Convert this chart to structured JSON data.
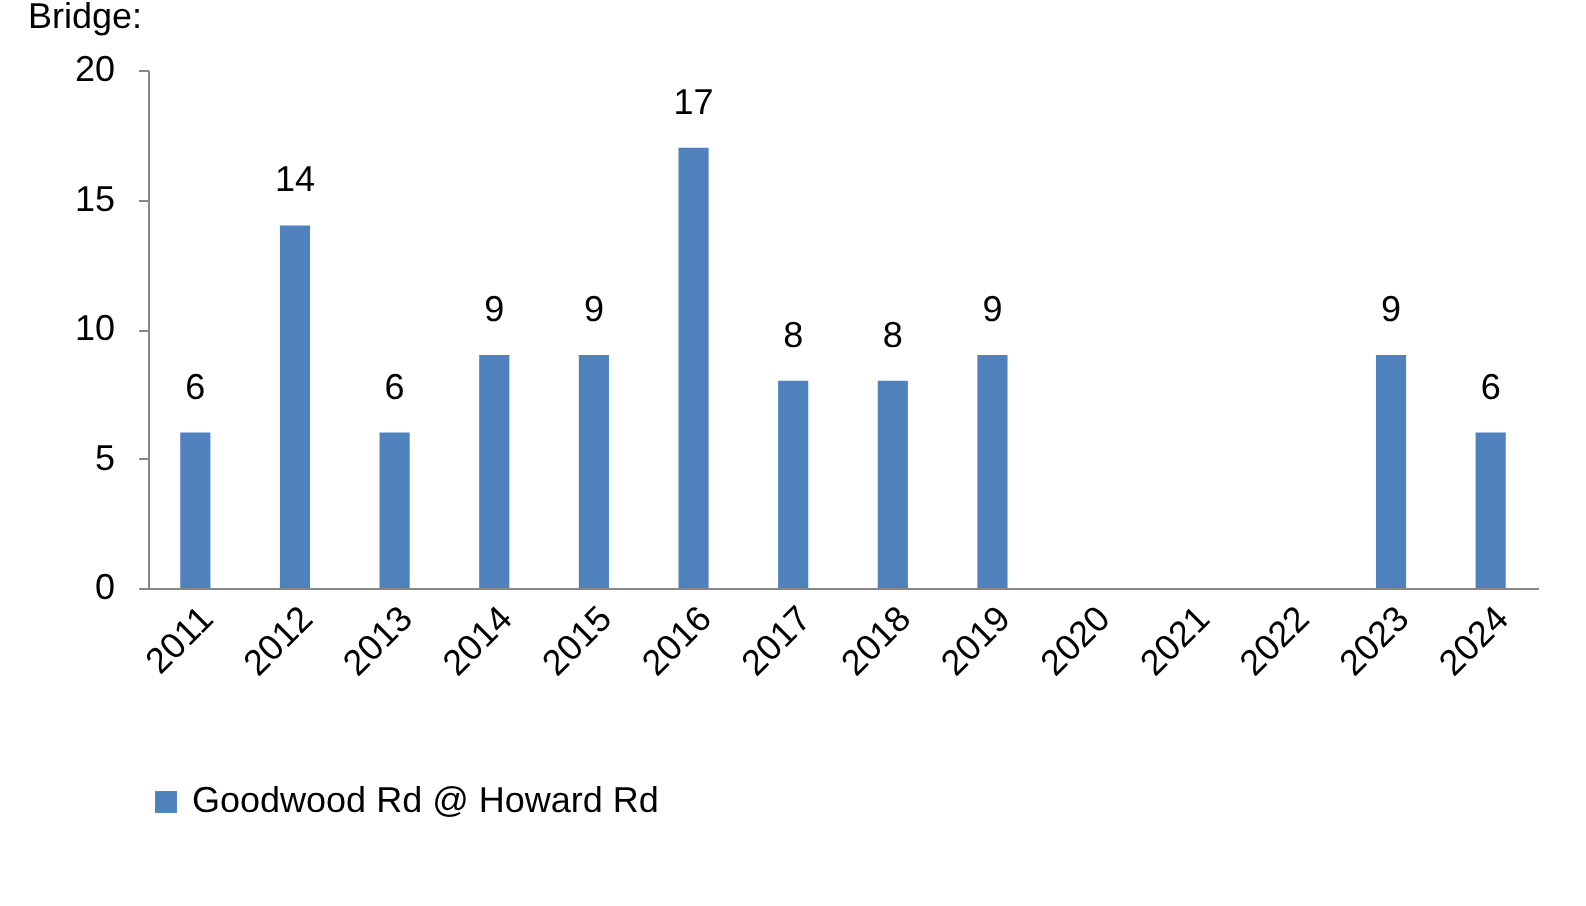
{
  "chart_data": {
    "type": "bar",
    "title": "Bridge:",
    "categories": [
      "2011",
      "2012",
      "2013",
      "2014",
      "2015",
      "2016",
      "2017",
      "2018",
      "2019",
      "2020",
      "2021",
      "2022",
      "2023",
      "2024"
    ],
    "series": [
      {
        "name": "Goodwood Rd @ Howard Rd",
        "color": "#4f81bd",
        "values": [
          6,
          14,
          6,
          9,
          9,
          17,
          8,
          8,
          9,
          null,
          null,
          null,
          9,
          6
        ]
      }
    ],
    "ylim": [
      0,
      20
    ],
    "yticks": [
      0,
      5,
      10,
      15,
      20
    ],
    "grid": false,
    "legend": "bottom",
    "data_labels": true
  }
}
